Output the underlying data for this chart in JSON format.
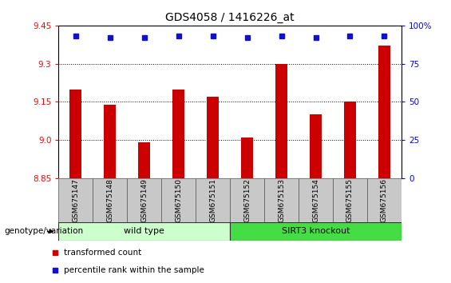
{
  "title": "GDS4058 / 1416226_at",
  "samples": [
    "GSM675147",
    "GSM675148",
    "GSM675149",
    "GSM675150",
    "GSM675151",
    "GSM675152",
    "GSM675153",
    "GSM675154",
    "GSM675155",
    "GSM675156"
  ],
  "transformed_count": [
    9.2,
    9.14,
    8.99,
    9.2,
    9.17,
    9.01,
    9.3,
    9.1,
    9.15,
    9.37
  ],
  "percentile_rank": [
    93,
    92,
    92,
    93,
    93,
    92,
    93,
    92,
    93,
    93
  ],
  "ylim_left": [
    8.85,
    9.45
  ],
  "ylim_right": [
    0,
    100
  ],
  "yticks_left": [
    8.85,
    9.0,
    9.15,
    9.3,
    9.45
  ],
  "yticks_right": [
    0,
    25,
    50,
    75,
    100
  ],
  "bar_color": "#cc0000",
  "dot_color": "#1111cc",
  "groups": [
    {
      "label": "wild type",
      "start": 0,
      "end": 5,
      "color": "#ccffcc"
    },
    {
      "label": "SIRT3 knockout",
      "start": 5,
      "end": 10,
      "color": "#44dd44"
    }
  ],
  "legend_items": [
    {
      "color": "#cc0000",
      "label": "transformed count"
    },
    {
      "color": "#1111cc",
      "label": "percentile rank within the sample"
    }
  ],
  "genotype_label": "genotype/variation",
  "title_fontsize": 10,
  "tick_fontsize": 7.5,
  "label_fontsize": 8,
  "sample_fontsize": 6.5
}
